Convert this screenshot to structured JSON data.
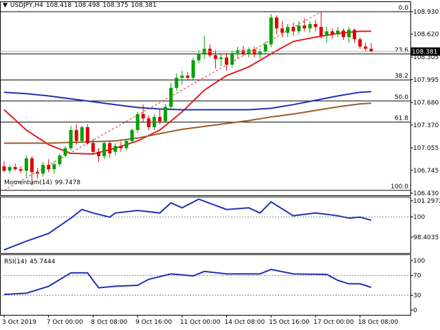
{
  "chart_data": [
    {
      "type": "candlestick",
      "title": "USDJPY,H4",
      "categories": [
        "3 Oct 2019",
        null,
        null,
        null,
        null,
        null,
        null,
        null,
        "7 Oct 00:00",
        null,
        null,
        null,
        null,
        null,
        null,
        null,
        "8 Oct 08:00",
        null,
        null,
        null,
        null,
        null,
        null,
        null,
        "9 Oct 16:00",
        null,
        null,
        null,
        null,
        null,
        null,
        null,
        "11 Oct 00:00",
        null,
        null,
        null,
        null,
        null,
        null,
        null,
        "14 Oct 08:00",
        null,
        null,
        null,
        null,
        null,
        null,
        null,
        "15 Oct 16:00",
        null,
        null,
        null,
        null,
        null,
        null,
        null,
        "17 Oct 00:00",
        null,
        null,
        null,
        null,
        null,
        null,
        null,
        "18 Oct 08:00",
        null,
        null
      ],
      "open": [
        106.8,
        106.74,
        106.79,
        106.76,
        106.74,
        106.91,
        106.72,
        106.7,
        106.82,
        106.76,
        106.83,
        106.95,
        107.05,
        107.3,
        107.15,
        107.34,
        107.12,
        107.0,
        106.94,
        107.12,
        107.0,
        107.08,
        107.05,
        107.15,
        107.3,
        107.52,
        107.46,
        107.34,
        107.48,
        107.42,
        107.62,
        107.88,
        108.02,
        108.05,
        108.02,
        108.26,
        108.35,
        108.42,
        108.33,
        108.28,
        108.3,
        108.2,
        108.36,
        108.4,
        108.35,
        108.41,
        108.34,
        108.38,
        108.48,
        108.85,
        108.7,
        108.64,
        108.72,
        108.66,
        108.74,
        108.7,
        108.76,
        108.72,
        108.6,
        108.66,
        108.62,
        108.67,
        108.58,
        108.68,
        108.55,
        108.45,
        108.418
      ],
      "high": [
        106.87,
        106.82,
        106.84,
        106.8,
        106.95,
        106.94,
        106.78,
        106.86,
        106.9,
        106.86,
        106.98,
        107.08,
        107.36,
        107.38,
        107.36,
        107.38,
        107.18,
        107.05,
        107.15,
        107.16,
        107.12,
        107.14,
        107.18,
        107.32,
        107.55,
        107.65,
        107.5,
        107.52,
        107.6,
        107.66,
        107.95,
        108.08,
        108.12,
        108.1,
        108.3,
        108.4,
        108.6,
        108.48,
        108.4,
        108.36,
        108.36,
        108.4,
        108.45,
        108.46,
        108.44,
        108.45,
        108.42,
        108.52,
        108.9,
        108.88,
        108.8,
        108.76,
        108.78,
        108.8,
        108.84,
        108.8,
        108.82,
        108.93,
        108.72,
        108.7,
        108.72,
        108.7,
        108.72,
        108.7,
        108.58,
        108.5,
        108.498
      ],
      "low": [
        106.72,
        106.7,
        106.74,
        106.71,
        106.66,
        106.54,
        106.63,
        106.66,
        106.72,
        106.7,
        106.8,
        106.92,
        107.02,
        107.1,
        107.12,
        107.1,
        106.96,
        106.86,
        106.9,
        106.92,
        106.95,
        107.0,
        107.02,
        107.12,
        107.26,
        107.4,
        107.3,
        107.3,
        107.38,
        107.4,
        107.58,
        107.84,
        107.92,
        107.98,
        107.98,
        108.22,
        108.28,
        108.3,
        108.15,
        108.18,
        108.12,
        108.16,
        108.28,
        108.32,
        108.3,
        108.3,
        108.28,
        108.34,
        108.44,
        108.62,
        108.58,
        108.58,
        108.6,
        108.62,
        108.66,
        108.64,
        108.66,
        108.56,
        108.5,
        108.56,
        108.58,
        108.54,
        108.5,
        108.5,
        108.42,
        108.38,
        108.375
      ],
      "close": [
        106.74,
        106.79,
        106.76,
        106.74,
        106.91,
        106.72,
        106.7,
        106.82,
        106.76,
        106.83,
        106.95,
        107.05,
        107.3,
        107.15,
        107.34,
        107.12,
        107.0,
        106.94,
        107.12,
        106.98,
        107.08,
        107.05,
        107.15,
        107.3,
        107.52,
        107.46,
        107.34,
        107.48,
        107.42,
        107.62,
        107.88,
        108.02,
        108.05,
        108.02,
        108.26,
        108.35,
        108.42,
        108.33,
        108.28,
        108.3,
        108.2,
        108.36,
        108.4,
        108.35,
        108.41,
        108.34,
        108.38,
        108.48,
        108.85,
        108.7,
        108.64,
        108.72,
        108.66,
        108.74,
        108.7,
        108.76,
        108.72,
        108.6,
        108.66,
        108.62,
        108.67,
        108.58,
        108.68,
        108.55,
        108.45,
        108.42,
        108.381
      ],
      "up_color": "#00a000",
      "down_color": "#e00000",
      "series": [
        {
          "color": "#e31a1c",
          "x": [
            0,
            4,
            8,
            12,
            16,
            20,
            24,
            28,
            32,
            36,
            40,
            44,
            48,
            52,
            56,
            60,
            64,
            66
          ],
          "values": [
            107.58,
            107.3,
            107.1,
            106.98,
            106.97,
            107.05,
            107.15,
            107.3,
            107.55,
            107.85,
            108.05,
            108.17,
            108.35,
            108.52,
            108.58,
            108.63,
            108.66,
            108.66
          ]
        },
        {
          "color": "#1f2fb4",
          "x": [
            0,
            4,
            8,
            12,
            16,
            20,
            24,
            28,
            32,
            36,
            40,
            44,
            48,
            52,
            56,
            60,
            64,
            66
          ],
          "values": [
            107.82,
            107.8,
            107.77,
            107.73,
            107.69,
            107.65,
            107.61,
            107.59,
            107.58,
            107.58,
            107.58,
            107.58,
            107.6,
            107.65,
            107.71,
            107.77,
            107.82,
            107.83
          ]
        },
        {
          "color": "#9c5a2a",
          "x": [
            0,
            4,
            8,
            12,
            16,
            20,
            24,
            28,
            32,
            36,
            40,
            44,
            48,
            52,
            56,
            60,
            64,
            66
          ],
          "values": [
            107.12,
            107.12,
            107.12,
            107.13,
            107.14,
            107.15,
            107.19,
            107.25,
            107.31,
            107.35,
            107.39,
            107.43,
            107.48,
            107.52,
            107.57,
            107.62,
            107.66,
            107.67
          ]
        }
      ],
      "trend_line": {
        "color": "#e31a1c",
        "x": [
          0,
          57
        ],
        "values": [
          106.47,
          108.93
        ]
      },
      "fib_high": 108.93,
      "fib_low": 106.47,
      "fib_levels": [
        {
          "value": 0,
          "label": "0.0"
        },
        {
          "value": 23.6,
          "label": "23.6"
        },
        38.2,
        {
          "value": 50,
          "label": "50.0"
        },
        61.8,
        {
          "value": 100,
          "label": "100.0"
        }
      ],
      "xlim": [
        -0.74,
        73.06
      ],
      "ylim": [
        106.402,
        109.072
      ],
      "yticks": [
        {
          "value": 108.93,
          "label": "108.930"
        },
        {
          "value": 108.62,
          "label": "108.620"
        },
        108.305,
        107.995,
        {
          "value": 107.68,
          "label": "107.680"
        },
        {
          "value": 107.37,
          "label": "107.370"
        },
        107.055,
        106.745,
        {
          "value": 106.43,
          "label": "106.430"
        }
      ]
    },
    {
      "type": "line",
      "title": "Momentum(14)",
      "color": "#1f2fb4",
      "x": [
        0,
        4,
        8,
        12,
        14,
        16,
        19,
        20,
        24,
        28,
        30,
        32,
        35,
        40,
        44,
        46,
        48,
        52,
        56,
        60,
        62,
        64,
        66
      ],
      "values": [
        97.39,
        98.08,
        98.69,
        99.91,
        100.6,
        100.32,
        99.99,
        100.32,
        100.52,
        100.32,
        101.13,
        100.73,
        101.42,
        100.6,
        100.73,
        100.32,
        101.2,
        100.1,
        100.32,
        100.1,
        99.91,
        99.99,
        99.7478
      ],
      "levels": [
        100
      ],
      "xlim": [
        -0.74,
        73.06
      ],
      "ylim": [
        97.14,
        101.62
      ],
      "yticks": [
        101.2972,
        100,
        98.4035
      ]
    },
    {
      "type": "line",
      "title": "RSI(14)",
      "color": "#1f2fb4",
      "x": [
        0,
        4,
        8,
        12,
        15,
        17,
        20,
        24,
        26,
        30,
        34,
        36,
        40,
        46,
        48,
        52,
        58,
        60,
        62,
        64,
        66
      ],
      "values": [
        31.5,
        34,
        48,
        75,
        75,
        45,
        48,
        50,
        62,
        73,
        69,
        78,
        73,
        73,
        82,
        73,
        72,
        60,
        53,
        53,
        45.7444
      ],
      "levels": [
        70,
        30
      ],
      "xlim": [
        -0.74,
        73.06
      ],
      "ylim": [
        -9.6,
        112.3
      ],
      "yticks": [
        100,
        70,
        30,
        0
      ]
    }
  ]
}
